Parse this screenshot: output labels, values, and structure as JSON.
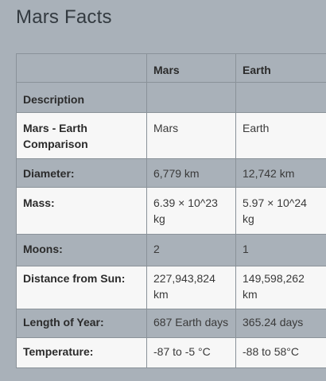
{
  "page": {
    "title": "Mars Facts"
  },
  "table": {
    "header": {
      "blank": "",
      "mars": "Mars",
      "earth": "Earth"
    },
    "rows": [
      {
        "label": "Description",
        "mars": "",
        "earth": ""
      },
      {
        "label": "Mars - Earth Comparison",
        "mars": "Mars",
        "earth": "Earth"
      },
      {
        "label": "Diameter:",
        "mars": "6,779 km",
        "earth": "12,742 km"
      },
      {
        "label": "Mass:",
        "mars": "6.39 × 10^23 kg",
        "earth": "5.97 × 10^24 kg"
      },
      {
        "label": "Moons:",
        "mars": "2",
        "earth": "1"
      },
      {
        "label": "Distance from Sun:",
        "mars": "227,943,824 km",
        "earth": "149,598,262 km"
      },
      {
        "label": "Length of Year:",
        "mars": "687 Earth days",
        "earth": "365.24 days"
      },
      {
        "label": "Temperature:",
        "mars": "-87 to -5 °C",
        "earth": "-88 to 58°C"
      }
    ]
  },
  "colors": {
    "background": "#a9b1b9",
    "row_light": "#f7f7f7",
    "border": "#8a9299"
  }
}
